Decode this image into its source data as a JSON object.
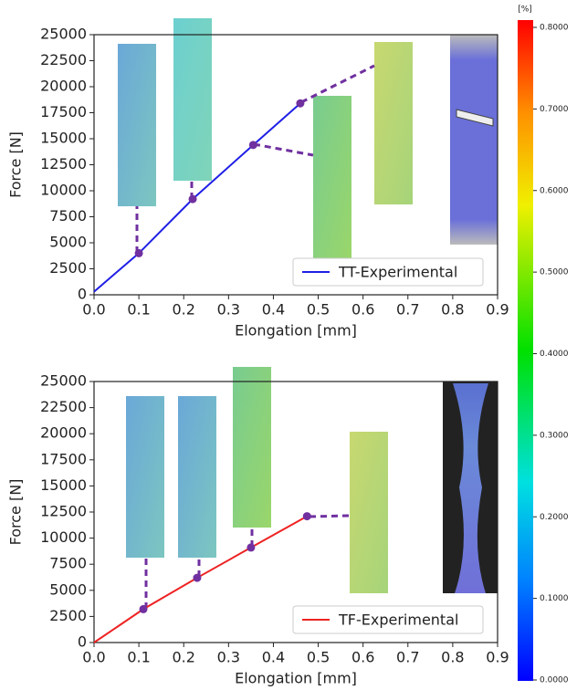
{
  "chart_data": [
    {
      "type": "line",
      "xlabel": "Elongation [mm]",
      "ylabel": "Force [N]",
      "xlim": [
        0,
        0.9
      ],
      "ylim": [
        0,
        25000
      ],
      "xticks": [
        {
          "value": 0,
          "label": "0.0"
        },
        0.1,
        0.2,
        0.3,
        0.4,
        0.5,
        0.6,
        0.7,
        0.8,
        0.9
      ],
      "yticks": [
        0,
        2500,
        5000,
        7500,
        10000,
        12500,
        15000,
        17500,
        20000,
        22500,
        25000
      ],
      "legend": "lower right",
      "marker_color": "#7030a0",
      "series": [
        {
          "name": "TT-Experimental",
          "color": "#1f1fe6",
          "x": [
            0,
            0.1,
            0.22,
            0.355,
            0.46
          ],
          "values": [
            300,
            4000,
            9200,
            14400,
            18400
          ],
          "markers": [
            false,
            true,
            true,
            true,
            true
          ]
        }
      ]
    },
    {
      "type": "line",
      "xlabel": "Elongation [mm]",
      "ylabel": "Force [N]",
      "xlim": [
        0,
        0.9
      ],
      "ylim": [
        0,
        25000
      ],
      "xticks": [
        {
          "value": 0,
          "label": "0.0"
        },
        0.1,
        0.2,
        0.3,
        0.4,
        0.5,
        0.6,
        0.7,
        0.8,
        0.9
      ],
      "yticks": [
        0,
        2500,
        5000,
        7500,
        10000,
        12500,
        15000,
        17500,
        20000,
        22500,
        25000
      ],
      "legend": "lower right",
      "marker_color": "#7030a0",
      "series": [
        {
          "name": "TF-Experimental",
          "color": "#ee2222",
          "x": [
            0,
            0.11,
            0.23,
            0.35,
            0.475
          ],
          "values": [
            0,
            3200,
            6200,
            9100,
            12100
          ],
          "markers": [
            false,
            true,
            true,
            true,
            true
          ]
        }
      ]
    },
    {
      "type": "colorbar",
      "label": "[%]",
      "ylim": [
        0,
        0.8
      ],
      "yticks": [
        {
          "value": 0,
          "label": "0.0000"
        },
        {
          "value": 0.1,
          "label": "0.1000"
        },
        {
          "value": 0.2,
          "label": "0.2000"
        },
        {
          "value": 0.3,
          "label": "0.3000"
        },
        {
          "value": 0.4,
          "label": "0.4000"
        },
        {
          "value": 0.5,
          "label": "0.5000"
        },
        {
          "value": 0.6,
          "label": "0.6000"
        },
        {
          "value": 0.7,
          "label": "0.7000"
        },
        {
          "value": 0.8,
          "label": "0.8000"
        }
      ]
    }
  ]
}
